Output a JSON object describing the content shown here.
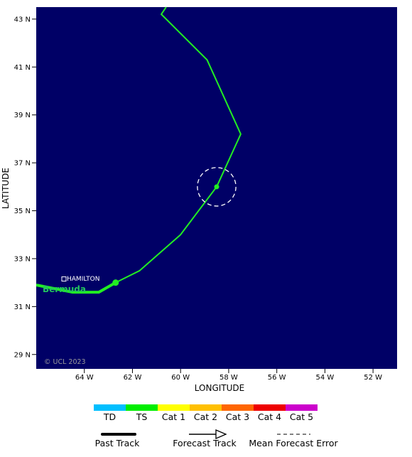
{
  "map": {
    "ocean_color": "#000066",
    "land_name": "Bermuda",
    "land_color": "#22c55e",
    "city": "HAMILTON",
    "copyright": "© UCL 2023",
    "xlabel": "LONGITUDE",
    "ylabel": "LATITUDE",
    "lon_ticks": [
      "64 W",
      "62 W",
      "60 W",
      "58 W",
      "56 W",
      "54 W",
      "52 W"
    ],
    "lat_ticks": [
      "43 N",
      "41 N",
      "39 N",
      "37 N",
      "35 N",
      "33 N",
      "31 N",
      "29 N"
    ]
  },
  "track": {
    "color": "#22ee22",
    "past": [
      [
        -66.0,
        31.9
      ],
      [
        -64.5,
        31.6
      ],
      [
        -63.4,
        31.6
      ],
      [
        -62.7,
        32.0
      ]
    ],
    "forecast": [
      [
        -62.7,
        32.0
      ],
      [
        -61.7,
        32.5
      ],
      [
        -60.0,
        34.0
      ],
      [
        -58.5,
        36.0
      ],
      [
        -57.5,
        38.2
      ],
      [
        -58.9,
        41.3
      ],
      [
        -60.8,
        43.2
      ],
      [
        -60.6,
        43.5
      ]
    ],
    "current_position": [
      -62.7,
      32.0
    ],
    "forecast_point": [
      -58.5,
      36.0
    ],
    "error_radius_deg": 0.8
  },
  "legend": {
    "categories": [
      {
        "label": "TD",
        "color": "#00bfff"
      },
      {
        "label": "TS",
        "color": "#00ee00"
      },
      {
        "label": "Cat 1",
        "color": "#ffff00"
      },
      {
        "label": "Cat 2",
        "color": "#ffc000"
      },
      {
        "label": "Cat 3",
        "color": "#ff6600"
      },
      {
        "label": "Cat 4",
        "color": "#ee0000"
      },
      {
        "label": "Cat 5",
        "color": "#cc00cc"
      }
    ],
    "past_track": "Past Track",
    "forecast_track": "Forecast Track",
    "mean_error": "Mean Forecast Error"
  }
}
